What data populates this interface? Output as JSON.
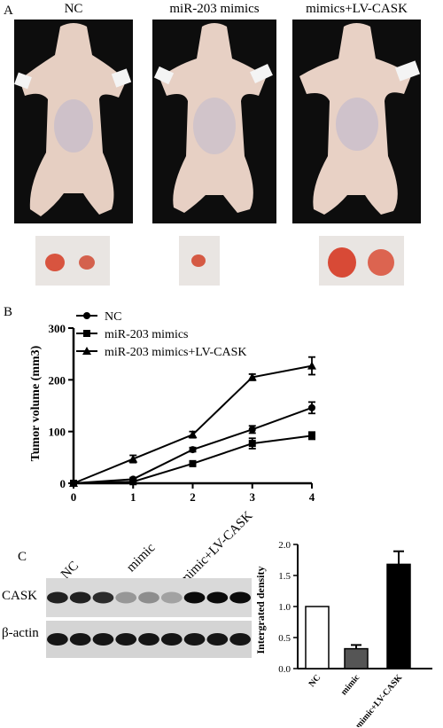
{
  "panel_a": {
    "letter": "A",
    "groups": [
      "NC",
      "miR-203 mimics",
      "mimics+LV-CASK"
    ]
  },
  "panel_b": {
    "letter": "B"
  },
  "panel_c": {
    "letter": "C",
    "lane_groups": [
      "NC",
      "mimic",
      "mimic+LV-CASK"
    ],
    "row_labels": [
      "CASK",
      "β-actin"
    ]
  },
  "colors": {
    "nc": "#ffffff",
    "mimic": "#555555",
    "lv": "#000000",
    "skin": "#e8d2c6",
    "tumor": "#d9533c"
  },
  "chart_data": [
    {
      "type": "line",
      "xlabel": "",
      "ylabel": "Tumor volume (mm3)",
      "x": [
        0,
        1,
        2,
        3,
        4
      ],
      "xlim": [
        0,
        4
      ],
      "ylim": [
        0,
        300
      ],
      "yticks": [
        0,
        100,
        200,
        300
      ],
      "legend_position": "top-left",
      "series": [
        {
          "name": "NC",
          "marker": "circle",
          "values": [
            0,
            8,
            65,
            104,
            146
          ],
          "errors": [
            0,
            3,
            4,
            7,
            11
          ]
        },
        {
          "name": "miR-203 mimics",
          "marker": "square",
          "values": [
            0,
            3,
            38,
            77,
            92
          ],
          "errors": [
            0,
            2,
            5,
            10,
            7
          ]
        },
        {
          "name": "miR-203 mimics+LV-CASK",
          "marker": "triangle",
          "values": [
            0,
            47,
            94,
            205,
            227
          ],
          "errors": [
            0,
            7,
            6,
            6,
            17
          ]
        }
      ]
    },
    {
      "type": "bar",
      "ylabel": "Intergrated density",
      "categories": [
        "NC",
        "mimic",
        "mimic+LV-CASK"
      ],
      "values": [
        1.0,
        0.32,
        1.68
      ],
      "errors": [
        0,
        0.06,
        0.21
      ],
      "ylim": [
        0,
        2.0
      ],
      "yticks": [
        "0.0",
        "0.5",
        "1.0",
        "1.5",
        "2.0"
      ]
    }
  ]
}
